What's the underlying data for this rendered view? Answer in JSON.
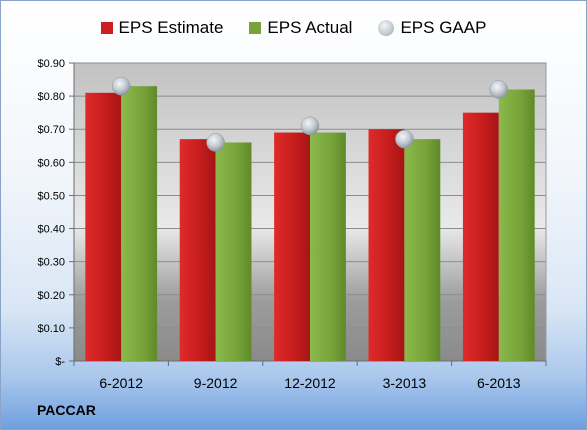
{
  "chart_data": {
    "type": "bar",
    "categories": [
      "6-2012",
      "9-2012",
      "12-2012",
      "3-2013",
      "6-2013"
    ],
    "series": [
      {
        "name": "EPS Estimate",
        "values": [
          0.81,
          0.67,
          0.69,
          0.7,
          0.75
        ],
        "color": "#cc1f1f"
      },
      {
        "name": "EPS Actual",
        "values": [
          0.83,
          0.66,
          0.69,
          0.67,
          0.82
        ],
        "color": "#77a33a"
      },
      {
        "name": "EPS GAAP",
        "values": [
          0.83,
          0.66,
          0.71,
          0.67,
          0.82
        ],
        "marker": "circle",
        "color": "#b8bfc6"
      }
    ],
    "yticks": [
      "$-",
      "$0.10",
      "$0.20",
      "$0.30",
      "$0.40",
      "$0.50",
      "$0.60",
      "$0.70",
      "$0.80",
      "$0.90"
    ],
    "ylim": [
      0,
      0.9
    ],
    "legend_position": "top",
    "grid": true
  },
  "company": "PACCAR"
}
